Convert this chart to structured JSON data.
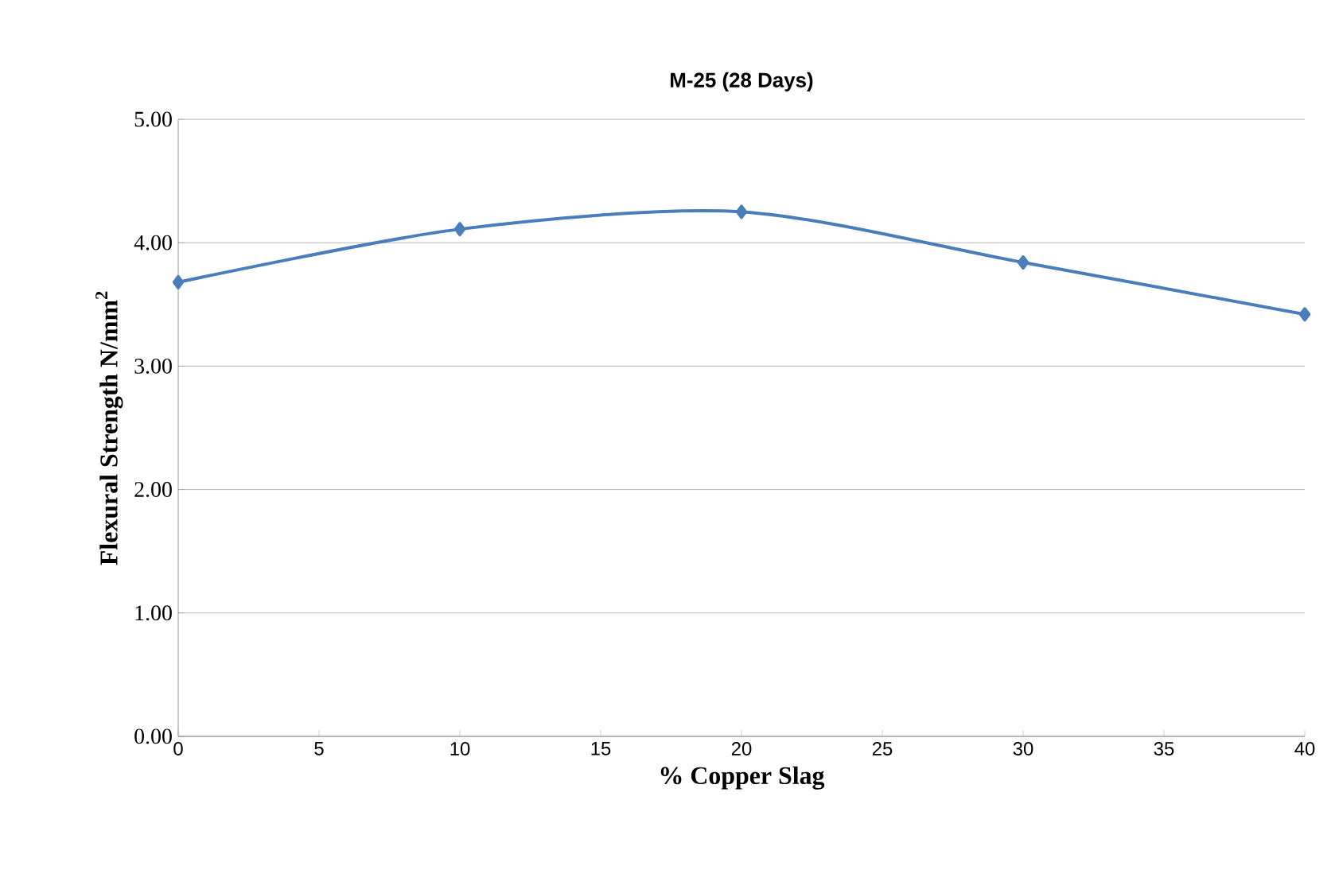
{
  "chart_data": {
    "type": "line",
    "title": "M-25 (28 Days)",
    "xlabel": "% Copper Slag",
    "ylabel": "Flexural Strength N/mm$^{2}$",
    "x": [
      0,
      10,
      20,
      30,
      40
    ],
    "series": [
      {
        "color": "#4a7ebb",
        "values": [
          3.68,
          4.11,
          4.25,
          3.84,
          3.42
        ]
      }
    ],
    "xlim": [
      0,
      40
    ],
    "xticks": [
      0,
      5,
      10,
      15,
      20,
      25,
      30,
      35,
      40
    ],
    "ylim": [
      0,
      5
    ],
    "yticks": [
      {
        "value": 0,
        "label": "0.00"
      },
      {
        "value": 1,
        "label": "1.00"
      },
      {
        "value": 2,
        "label": "2.00"
      },
      {
        "value": 3,
        "label": "3.00"
      },
      {
        "value": 4,
        "label": "4.00"
      },
      {
        "value": 5,
        "label": "5.00"
      }
    ],
    "grid": "y",
    "marker": "diamond",
    "line_style": "solid"
  }
}
